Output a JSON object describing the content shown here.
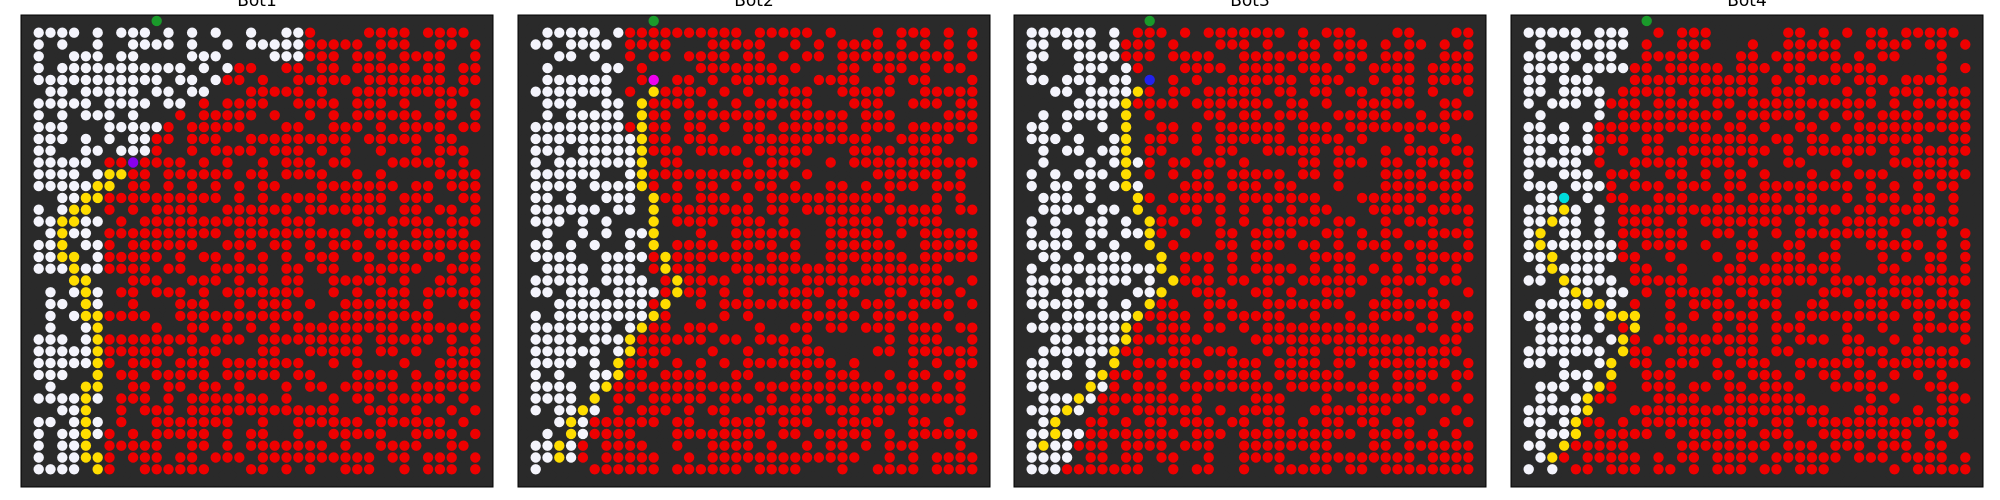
{
  "figure": {
    "background": "#ffffff"
  },
  "chart_data": [
    {
      "type": "heatmap",
      "title": "Bot1",
      "grid_size": 40,
      "categories": [
        "blocked",
        "open",
        "fire",
        "path",
        "start",
        "bot"
      ],
      "legend": "none",
      "grid": false,
      "start_cell": [
        0,
        11
      ],
      "bot_cell": [
        12,
        9
      ],
      "bot_color": "#8800ee",
      "path_cells": [
        [
          12,
          9
        ],
        [
          13,
          8
        ],
        [
          13,
          7
        ],
        [
          14,
          7
        ],
        [
          14,
          6
        ],
        [
          15,
          6
        ],
        [
          15,
          5
        ],
        [
          16,
          5
        ],
        [
          16,
          4
        ],
        [
          17,
          4
        ],
        [
          17,
          3
        ],
        [
          18,
          3
        ],
        [
          19,
          3
        ],
        [
          20,
          3
        ],
        [
          20,
          4
        ],
        [
          21,
          4
        ],
        [
          22,
          4
        ],
        [
          22,
          5
        ],
        [
          23,
          5
        ],
        [
          24,
          5
        ],
        [
          25,
          5
        ],
        [
          25,
          6
        ],
        [
          26,
          6
        ],
        [
          27,
          6
        ],
        [
          28,
          6
        ],
        [
          29,
          6
        ],
        [
          30,
          6
        ],
        [
          31,
          6
        ],
        [
          31,
          5
        ],
        [
          32,
          5
        ],
        [
          33,
          5
        ],
        [
          34,
          5
        ],
        [
          35,
          5
        ],
        [
          36,
          5
        ],
        [
          37,
          5
        ],
        [
          37,
          6
        ],
        [
          38,
          6
        ]
      ]
    },
    {
      "type": "heatmap",
      "title": "Bot2",
      "grid_size": 40,
      "categories": [
        "blocked",
        "open",
        "fire",
        "path",
        "start",
        "bot"
      ],
      "legend": "none",
      "grid": false,
      "start_cell": [
        0,
        11
      ],
      "bot_cell": [
        5,
        11
      ],
      "bot_color": "#ee00ee",
      "path_cells": [
        [
          5,
          11
        ],
        [
          6,
          11
        ],
        [
          7,
          10
        ],
        [
          8,
          10
        ],
        [
          9,
          10
        ],
        [
          10,
          10
        ],
        [
          11,
          10
        ],
        [
          12,
          10
        ],
        [
          13,
          10
        ],
        [
          14,
          10
        ],
        [
          15,
          11
        ],
        [
          16,
          11
        ],
        [
          17,
          11
        ],
        [
          18,
          11
        ],
        [
          19,
          11
        ],
        [
          20,
          12
        ],
        [
          21,
          12
        ],
        [
          22,
          13
        ],
        [
          23,
          13
        ],
        [
          24,
          12
        ],
        [
          25,
          11
        ],
        [
          26,
          10
        ],
        [
          27,
          9
        ],
        [
          28,
          9
        ],
        [
          29,
          8
        ],
        [
          30,
          8
        ],
        [
          31,
          7
        ],
        [
          32,
          6
        ],
        [
          33,
          5
        ],
        [
          34,
          4
        ],
        [
          35,
          4
        ],
        [
          36,
          3
        ],
        [
          37,
          3
        ]
      ]
    },
    {
      "type": "heatmap",
      "title": "Bot3",
      "grid_size": 40,
      "categories": [
        "blocked",
        "open",
        "fire",
        "path",
        "start",
        "bot"
      ],
      "legend": "none",
      "grid": false,
      "start_cell": [
        0,
        11
      ],
      "bot_cell": [
        5,
        11
      ],
      "bot_color": "#2222ee",
      "path_cells": [
        [
          5,
          11
        ],
        [
          6,
          10
        ],
        [
          7,
          9
        ],
        [
          8,
          9
        ],
        [
          9,
          9
        ],
        [
          10,
          9
        ],
        [
          11,
          9
        ],
        [
          12,
          9
        ],
        [
          13,
          9
        ],
        [
          14,
          9
        ],
        [
          15,
          10
        ],
        [
          16,
          10
        ],
        [
          17,
          11
        ],
        [
          18,
          11
        ],
        [
          19,
          11
        ],
        [
          20,
          12
        ],
        [
          21,
          12
        ],
        [
          22,
          13
        ],
        [
          23,
          12
        ],
        [
          24,
          11
        ],
        [
          25,
          10
        ],
        [
          26,
          9
        ],
        [
          27,
          9
        ],
        [
          28,
          8
        ],
        [
          29,
          8
        ],
        [
          30,
          7
        ],
        [
          31,
          6
        ],
        [
          32,
          5
        ],
        [
          33,
          4
        ],
        [
          34,
          3
        ],
        [
          35,
          3
        ],
        [
          36,
          2
        ]
      ]
    },
    {
      "type": "heatmap",
      "title": "Bot4",
      "grid_size": 40,
      "categories": [
        "blocked",
        "open",
        "fire",
        "path",
        "start",
        "bot"
      ],
      "legend": "none",
      "grid": false,
      "start_cell": [
        0,
        11
      ],
      "bot_cell": [
        15,
        4
      ],
      "bot_color": "#00dddd",
      "path_cells": [
        [
          15,
          4
        ],
        [
          16,
          4
        ],
        [
          17,
          3
        ],
        [
          18,
          2
        ],
        [
          19,
          2
        ],
        [
          20,
          3
        ],
        [
          21,
          3
        ],
        [
          22,
          4
        ],
        [
          23,
          5
        ],
        [
          24,
          6
        ],
        [
          24,
          7
        ],
        [
          25,
          8
        ],
        [
          25,
          9
        ],
        [
          25,
          10
        ],
        [
          26,
          10
        ],
        [
          27,
          9
        ],
        [
          28,
          9
        ],
        [
          29,
          8
        ],
        [
          30,
          8
        ],
        [
          31,
          7
        ],
        [
          32,
          6
        ],
        [
          33,
          6
        ],
        [
          34,
          5
        ],
        [
          35,
          5
        ],
        [
          36,
          4
        ],
        [
          37,
          3
        ]
      ]
    }
  ],
  "colors": {
    "blocked": "#2a2a2a",
    "open": "#f4f4fc",
    "fire": "#ee0000",
    "path": "#ffdd00",
    "start": "#1a9a2a",
    "title": "#000000"
  }
}
